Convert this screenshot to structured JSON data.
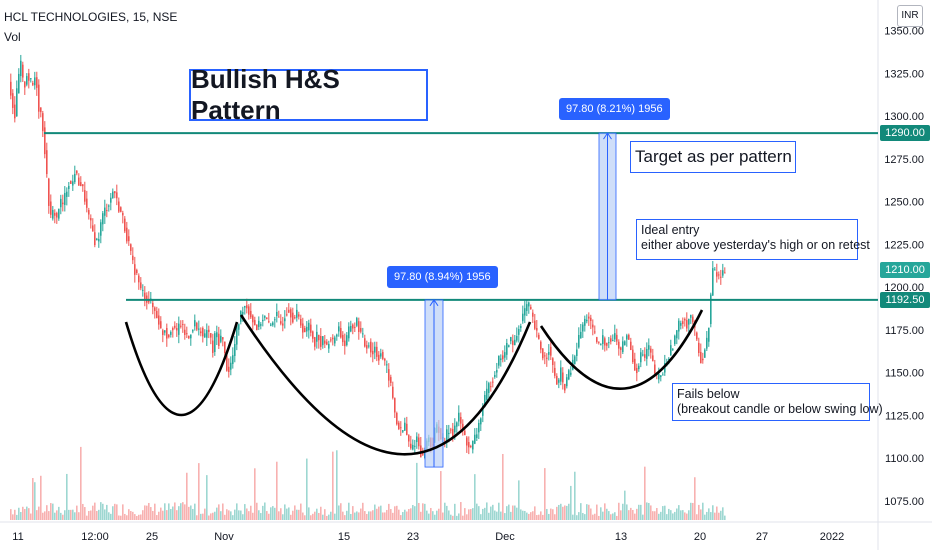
{
  "header": {
    "symbol": "HCL TECHNOLOGIES, 15, NSE",
    "indicator": "Vol"
  },
  "currency": "INR",
  "title": "Bullish H&S Pattern",
  "annotations": {
    "target": "Target as per pattern",
    "entry_line1": "Ideal entry",
    "entry_line2": "either above yesterday's high or on retest",
    "fails_line1": "Fails below",
    "fails_line2": "(breakout candle or below swing low)"
  },
  "measures": {
    "left": "97.80 (8.94%) 1956",
    "right": "97.80 (8.21%) 1956"
  },
  "price_tags": {
    "target": "1290.00",
    "current": "1210.00",
    "current_ghost": "1200.00",
    "neckline": "1192.50"
  },
  "colors": {
    "teal": "#12897a",
    "blue": "#2962ff",
    "up": "#26a69a",
    "down": "#ef5350",
    "fill": "#bbd0f7"
  },
  "chart_data": {
    "type": "candlestick",
    "y_axis": {
      "ticks": [
        1075,
        1100,
        1125,
        1150,
        1175,
        1200,
        1225,
        1250,
        1275,
        1300,
        1325,
        1350
      ],
      "tick_labels": [
        "1075.00",
        "1100.00",
        "1125.00",
        "1150.00",
        "1175.00",
        "1200.00",
        "1225.00",
        "1250.00",
        "1275.00",
        "1300.00",
        "1325.00",
        "1350.00"
      ],
      "range": [
        1066,
        1353
      ]
    },
    "x_axis": {
      "tick_labels": [
        "11",
        "12:00",
        "25",
        "Nov",
        "15",
        "23",
        "Dec",
        "13",
        "20",
        "27",
        "2022"
      ]
    },
    "levels": {
      "target": 1290.0,
      "neckline": 1192.5
    },
    "close_path": [
      [
        0,
        1320
      ],
      [
        3,
        1310
      ],
      [
        6,
        1300
      ],
      [
        9,
        1320
      ],
      [
        12,
        1330
      ],
      [
        15,
        1315
      ],
      [
        18,
        1325
      ],
      [
        21,
        1320
      ],
      [
        24,
        1318
      ],
      [
        27,
        1325
      ],
      [
        30,
        1305
      ],
      [
        33,
        1300
      ],
      [
        36,
        1280
      ],
      [
        39,
        1255
      ],
      [
        42,
        1240
      ],
      [
        45,
        1245
      ],
      [
        48,
        1240
      ],
      [
        51,
        1250
      ],
      [
        54,
        1248
      ],
      [
        57,
        1255
      ],
      [
        60,
        1262
      ],
      [
        63,
        1258
      ],
      [
        66,
        1268
      ],
      [
        69,
        1262
      ],
      [
        72,
        1260
      ],
      [
        75,
        1255
      ],
      [
        78,
        1245
      ],
      [
        81,
        1238
      ],
      [
        84,
        1232
      ],
      [
        87,
        1225
      ],
      [
        90,
        1230
      ],
      [
        93,
        1240
      ],
      [
        96,
        1245
      ],
      [
        99,
        1248
      ],
      [
        102,
        1252
      ],
      [
        105,
        1258
      ],
      [
        108,
        1250
      ],
      [
        111,
        1245
      ],
      [
        114,
        1240
      ],
      [
        117,
        1232
      ],
      [
        120,
        1225
      ],
      [
        123,
        1215
      ],
      [
        126,
        1210
      ],
      [
        129,
        1205
      ],
      [
        132,
        1198
      ],
      [
        135,
        1196
      ],
      [
        138,
        1193
      ],
      [
        141,
        1192
      ],
      [
        144,
        1188
      ],
      [
        147,
        1185
      ],
      [
        150,
        1180
      ],
      [
        153,
        1172
      ],
      [
        156,
        1176
      ],
      [
        159,
        1170
      ],
      [
        162,
        1176
      ],
      [
        165,
        1178
      ],
      [
        168,
        1172
      ],
      [
        171,
        1180
      ],
      [
        174,
        1175
      ],
      [
        177,
        1172
      ],
      [
        180,
        1170
      ],
      [
        183,
        1176
      ],
      [
        186,
        1179
      ],
      [
        189,
        1173
      ],
      [
        192,
        1176
      ],
      [
        195,
        1168
      ],
      [
        198,
        1175
      ],
      [
        201,
        1172
      ],
      [
        204,
        1162
      ],
      [
        207,
        1175
      ],
      [
        210,
        1168
      ],
      [
        213,
        1172
      ],
      [
        216,
        1160
      ],
      [
        219,
        1150
      ],
      [
        222,
        1155
      ],
      [
        225,
        1162
      ],
      [
        228,
        1175
      ],
      [
        231,
        1182
      ],
      [
        234,
        1188
      ],
      [
        237,
        1190
      ],
      [
        240,
        1186
      ],
      [
        243,
        1182
      ],
      [
        246,
        1178
      ],
      [
        249,
        1176
      ],
      [
        252,
        1180
      ],
      [
        255,
        1183
      ],
      [
        258,
        1180
      ],
      [
        261,
        1176
      ],
      [
        264,
        1181
      ],
      [
        267,
        1184
      ],
      [
        270,
        1180
      ],
      [
        273,
        1178
      ],
      [
        276,
        1184
      ],
      [
        279,
        1188
      ],
      [
        282,
        1185
      ],
      [
        285,
        1181
      ],
      [
        288,
        1184
      ],
      [
        291,
        1180
      ],
      [
        294,
        1176
      ],
      [
        297,
        1173
      ],
      [
        300,
        1178
      ],
      [
        303,
        1172
      ],
      [
        306,
        1168
      ],
      [
        309,
        1174
      ],
      [
        312,
        1166
      ],
      [
        315,
        1170
      ],
      [
        318,
        1164
      ],
      [
        321,
        1172
      ],
      [
        324,
        1167
      ],
      [
        327,
        1173
      ],
      [
        330,
        1176
      ],
      [
        333,
        1170
      ],
      [
        336,
        1166
      ],
      [
        339,
        1172
      ],
      [
        342,
        1178
      ],
      [
        345,
        1176
      ],
      [
        348,
        1180
      ],
      [
        351,
        1174
      ],
      [
        354,
        1170
      ],
      [
        357,
        1164
      ],
      [
        360,
        1168
      ],
      [
        363,
        1160
      ],
      [
        366,
        1165
      ],
      [
        369,
        1158
      ],
      [
        372,
        1162
      ],
      [
        375,
        1156
      ],
      [
        378,
        1152
      ],
      [
        381,
        1145
      ],
      [
        384,
        1135
      ],
      [
        387,
        1122
      ],
      [
        390,
        1118
      ],
      [
        393,
        1114
      ],
      [
        396,
        1120
      ],
      [
        399,
        1110
      ],
      [
        402,
        1105
      ],
      [
        405,
        1108
      ],
      [
        408,
        1112
      ],
      [
        411,
        1105
      ],
      [
        414,
        1100
      ],
      [
        417,
        1108
      ],
      [
        420,
        1112
      ],
      [
        423,
        1106
      ],
      [
        426,
        1115
      ],
      [
        429,
        1120
      ],
      [
        432,
        1112
      ],
      [
        435,
        1108
      ],
      [
        438,
        1114
      ],
      [
        441,
        1118
      ],
      [
        444,
        1115
      ],
      [
        447,
        1120
      ],
      [
        450,
        1124
      ],
      [
        453,
        1118
      ],
      [
        456,
        1112
      ],
      [
        459,
        1108
      ],
      [
        462,
        1105
      ],
      [
        465,
        1110
      ],
      [
        468,
        1115
      ],
      [
        471,
        1122
      ],
      [
        474,
        1130
      ],
      [
        477,
        1136
      ],
      [
        480,
        1142
      ],
      [
        483,
        1146
      ],
      [
        486,
        1150
      ],
      [
        489,
        1156
      ],
      [
        492,
        1160
      ],
      [
        495,
        1158
      ],
      [
        498,
        1165
      ],
      [
        501,
        1170
      ],
      [
        504,
        1166
      ],
      [
        507,
        1170
      ],
      [
        510,
        1176
      ],
      [
        513,
        1182
      ],
      [
        516,
        1186
      ],
      [
        519,
        1190
      ],
      [
        522,
        1185
      ],
      [
        525,
        1178
      ],
      [
        528,
        1172
      ],
      [
        531,
        1166
      ],
      [
        534,
        1160
      ],
      [
        537,
        1158
      ],
      [
        540,
        1165
      ],
      [
        543,
        1155
      ],
      [
        546,
        1148
      ],
      [
        549,
        1142
      ],
      [
        552,
        1150
      ],
      [
        555,
        1140
      ],
      [
        558,
        1146
      ],
      [
        561,
        1150
      ],
      [
        564,
        1155
      ],
      [
        567,
        1162
      ],
      [
        570,
        1170
      ],
      [
        573,
        1176
      ],
      [
        576,
        1180
      ],
      [
        579,
        1184
      ],
      [
        582,
        1178
      ],
      [
        585,
        1172
      ],
      [
        588,
        1168
      ],
      [
        591,
        1165
      ],
      [
        594,
        1170
      ],
      [
        597,
        1166
      ],
      [
        600,
        1170
      ],
      [
        603,
        1168
      ],
      [
        606,
        1172
      ],
      [
        609,
        1166
      ],
      [
        612,
        1162
      ],
      [
        615,
        1168
      ],
      [
        618,
        1172
      ],
      [
        621,
        1166
      ],
      [
        624,
        1158
      ],
      [
        627,
        1150
      ],
      [
        630,
        1156
      ],
      [
        633,
        1162
      ],
      [
        636,
        1158
      ],
      [
        639,
        1166
      ],
      [
        642,
        1160
      ],
      [
        645,
        1152
      ],
      [
        648,
        1146
      ],
      [
        651,
        1148
      ],
      [
        654,
        1150
      ],
      [
        657,
        1156
      ],
      [
        660,
        1160
      ],
      [
        663,
        1165
      ],
      [
        666,
        1170
      ],
      [
        669,
        1176
      ],
      [
        672,
        1180
      ],
      [
        675,
        1182
      ],
      [
        678,
        1178
      ],
      [
        681,
        1184
      ],
      [
        684,
        1180
      ],
      [
        687,
        1170
      ],
      [
        690,
        1162
      ],
      [
        693,
        1156
      ],
      [
        696,
        1164
      ],
      [
        699,
        1170
      ],
      [
        702,
        1195
      ],
      [
        704,
        1210
      ],
      [
        707,
        1208
      ],
      [
        710,
        1206
      ],
      [
        713,
        1207
      ],
      [
        715,
        1210
      ]
    ]
  }
}
